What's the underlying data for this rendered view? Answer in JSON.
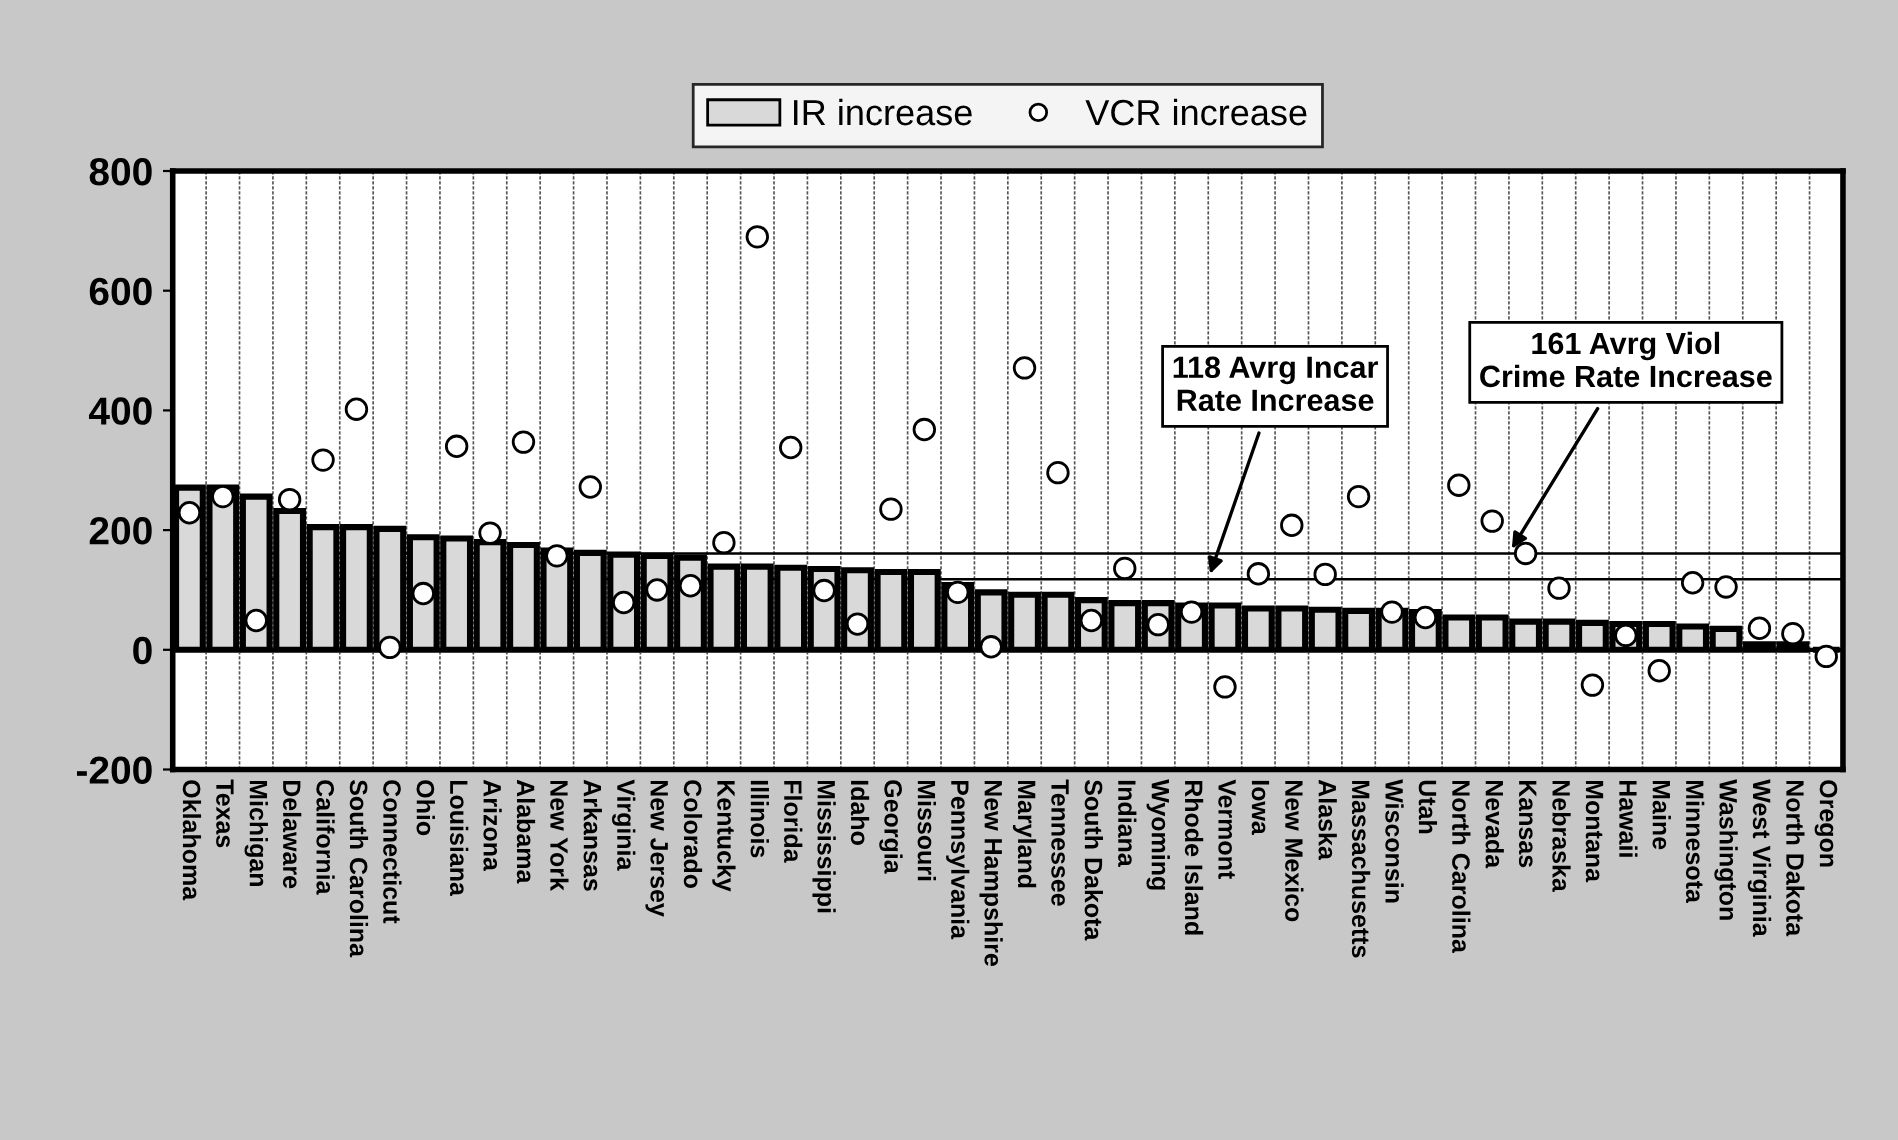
{
  "chart_data": {
    "type": "bar",
    "categories": [
      "Oklahoma",
      "Texas",
      "Michigan",
      "Delaware",
      "California",
      "South Carolina",
      "Connecticut",
      "Ohio",
      "Louisiana",
      "Arizona",
      "Alabama",
      "New York",
      "Arkansas",
      "Virginia",
      "New Jersey",
      "Colorado",
      "Kentucky",
      "Illinois",
      "Florida",
      "Mississippi",
      "Idaho",
      "Georgia",
      "Missouri",
      "Pennsylvania",
      "New Hampshire",
      "Maryland",
      "Tennessee",
      "South Dakota",
      "Indiana",
      "Wyoming",
      "Rhode Island",
      "Vermont",
      "Iowa",
      "New Mexico",
      "Alaska",
      "Massachusetts",
      "Wisconsin",
      "Utah",
      "North Carolina",
      "Nevada",
      "Kansas",
      "Nebraska",
      "Montana",
      "Hawaii",
      "Maine",
      "Minnesota",
      "Washington",
      "West Virginia",
      "North Dakota",
      "Oregon"
    ],
    "series": [
      {
        "name": "IR increase",
        "color": "#d9d9d9",
        "values": [
          271,
          271,
          256,
          232,
          205,
          205,
          202,
          188,
          186,
          180,
          175,
          166,
          162,
          159,
          157,
          154,
          139,
          139,
          137,
          135,
          133,
          130,
          130,
          108,
          96,
          92,
          92,
          83,
          78,
          78,
          74,
          74,
          69,
          69,
          67,
          65,
          65,
          63,
          54,
          54,
          47,
          47,
          45,
          43,
          43,
          39,
          35,
          9,
          9,
          null
        ]
      },
      {
        "name": "VCR increase",
        "type": "scatter",
        "color": "#ffffff",
        "values": [
          229,
          256,
          49,
          251,
          317,
          402,
          4,
          94,
          340,
          195,
          347,
          157,
          272,
          79,
          100,
          107,
          179,
          690,
          338,
          99,
          43,
          235,
          368,
          96,
          5,
          471,
          296,
          49,
          136,
          42,
          63,
          -62,
          127,
          208,
          126,
          256,
          63,
          54,
          275,
          215,
          161,
          103,
          -59,
          24,
          -35,
          112,
          105,
          36,
          27,
          -11
        ]
      }
    ],
    "ylim": [
      -200,
      800
    ],
    "yticks": [
      -200,
      0,
      200,
      400,
      600,
      800
    ],
    "grid": "x",
    "legend": "top",
    "marker": "circle",
    "ref_lines": [
      {
        "axis": "y",
        "value": 118,
        "label": "118 Avrg Incar Rate Increase",
        "color": "#000000"
      },
      {
        "axis": "y",
        "value": 161,
        "label": "161 Avrg Viol Crime Rate Increase",
        "color": "#000000"
      }
    ]
  }
}
